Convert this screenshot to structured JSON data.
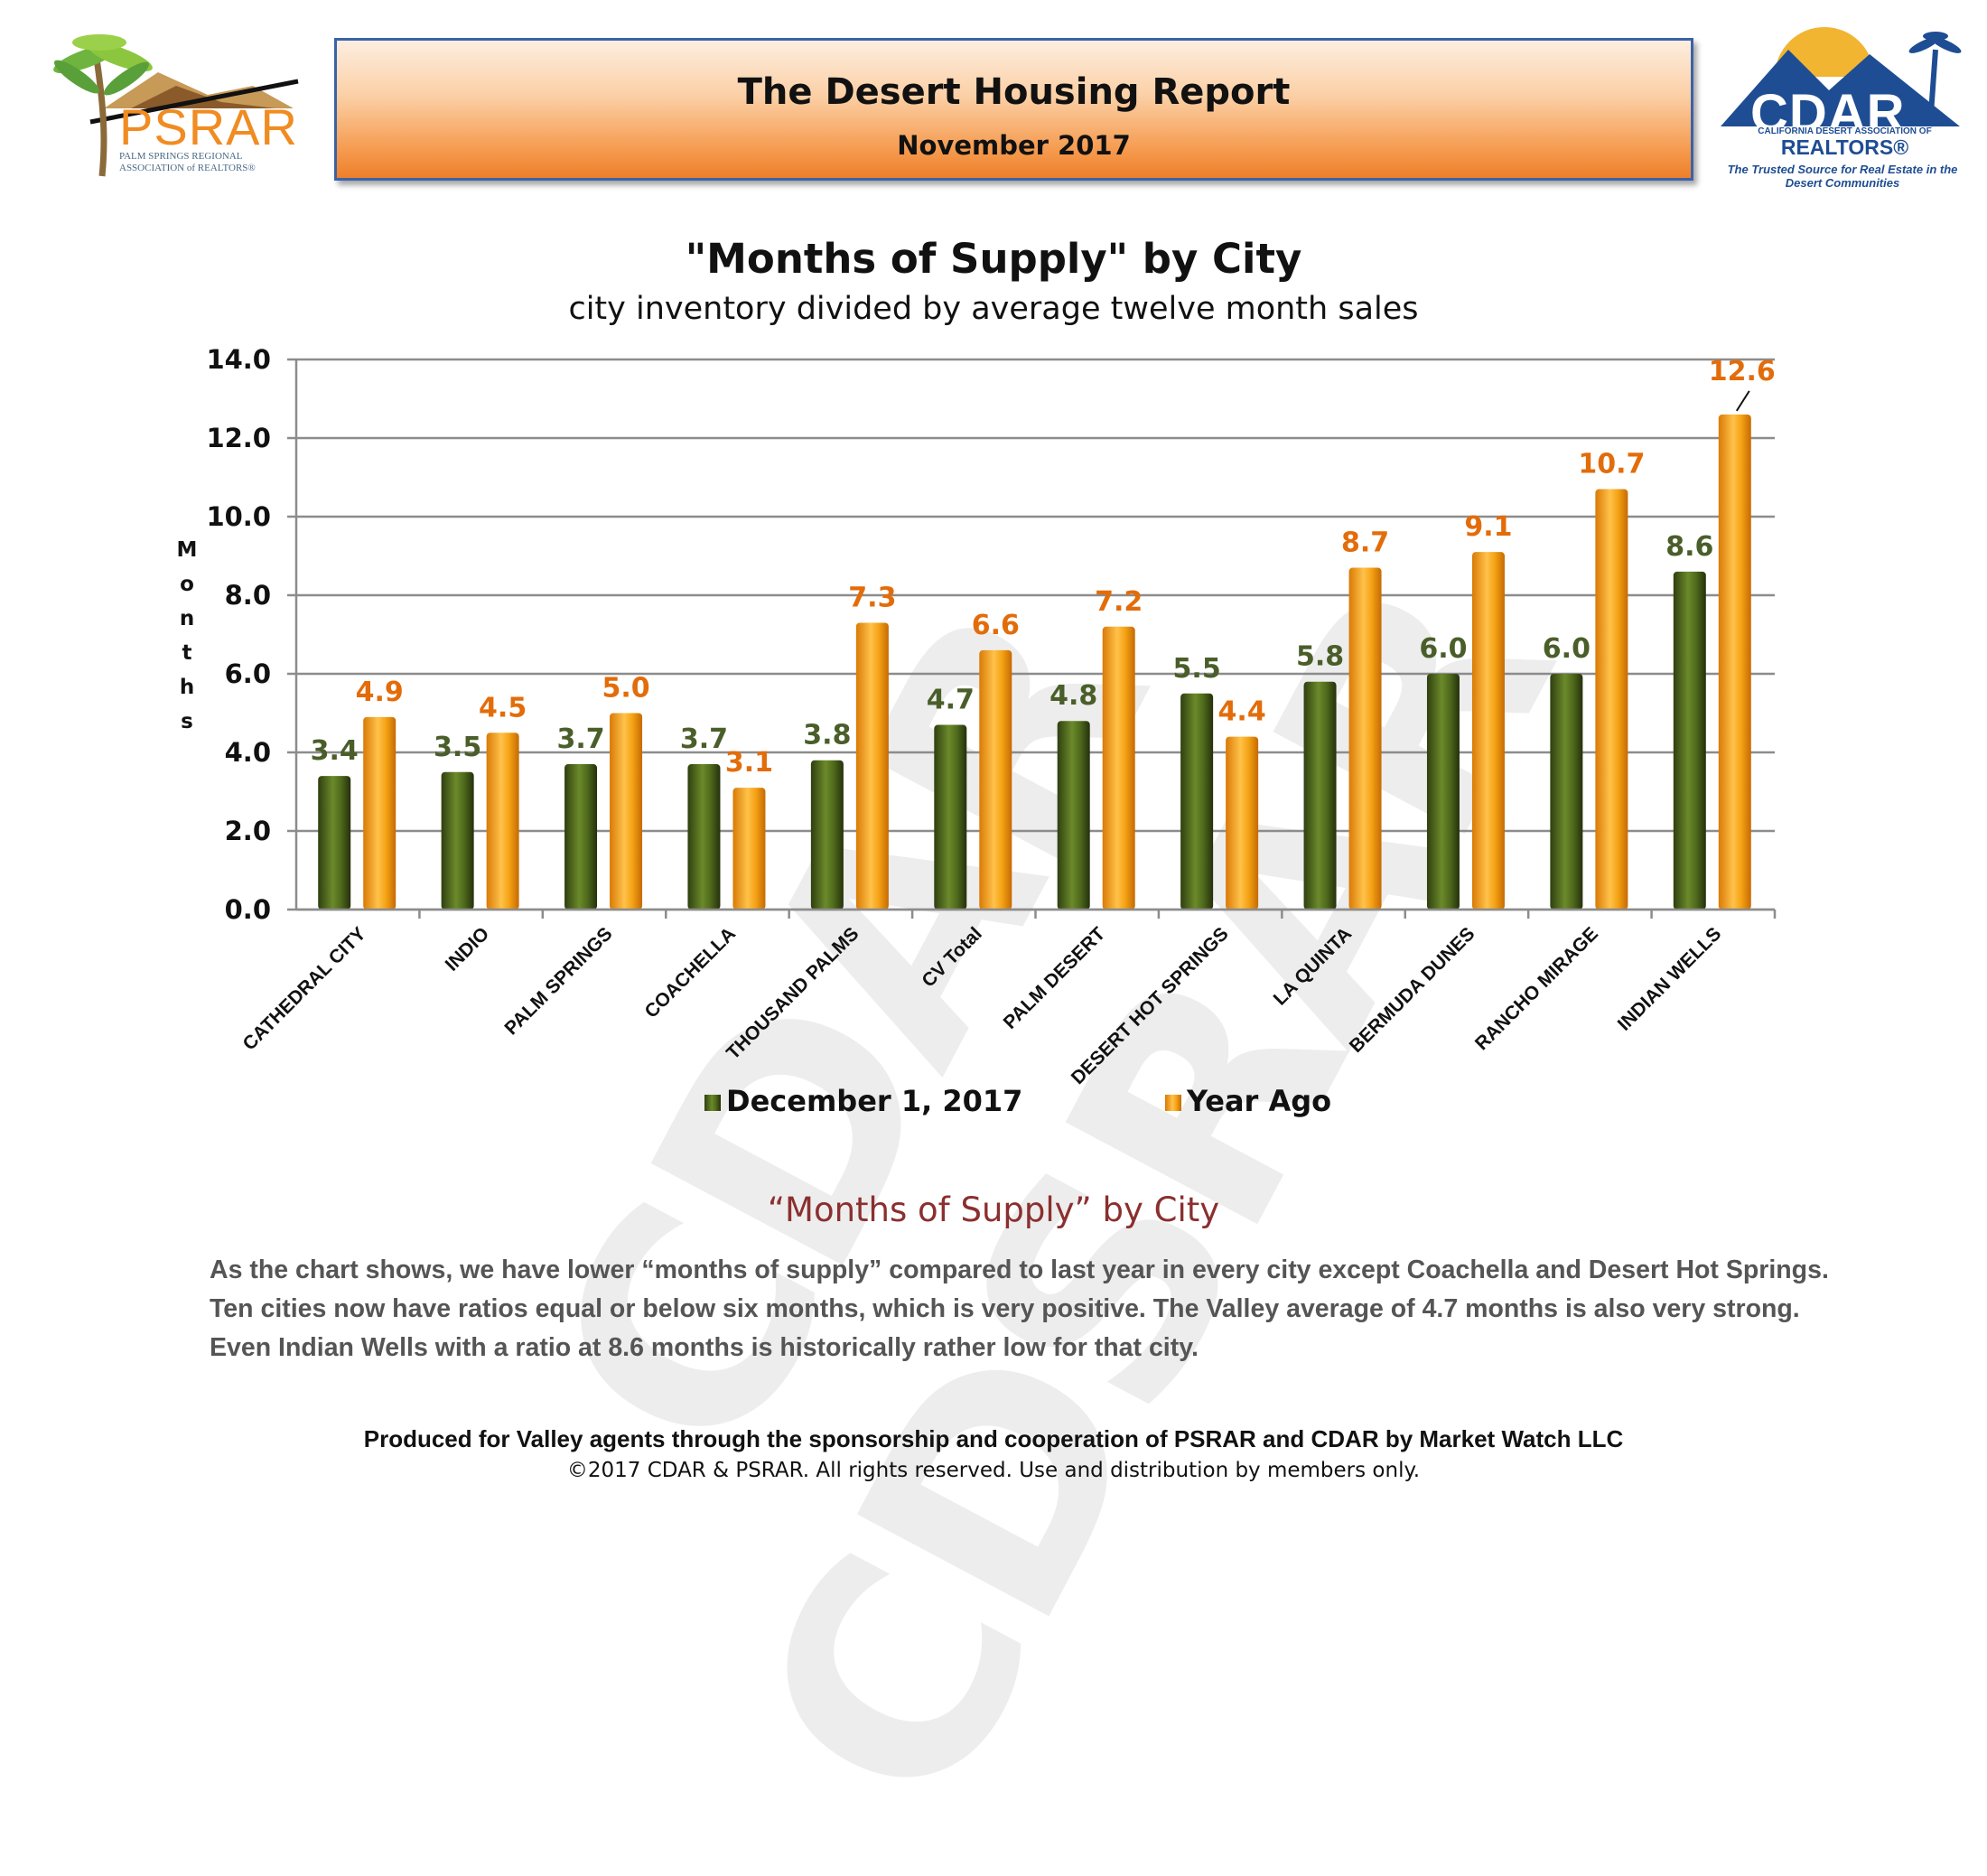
{
  "header": {
    "title": "The Desert Housing Report",
    "subtitle": "November 2017"
  },
  "logos": {
    "psrar": {
      "name": "PSRAR",
      "tagline": "PALM SPRINGS REGIONAL ASSOCIATION of REALTORS®"
    },
    "cdar": {
      "name": "CDAR",
      "assoc": "CALIFORNIA DESERT ASSOCIATION OF",
      "realtors": "REALTORS®",
      "tagline": "The Trusted Source for Real Estate in the Desert Communities"
    }
  },
  "watermark": "CDAR CDSRAR",
  "chart_data": {
    "type": "bar",
    "title": "\"Months of Supply\" by City",
    "subtitle": "city inventory divided by average twelve month sales",
    "ylabel": "Months",
    "xlabel": "",
    "ylim": [
      0,
      14
    ],
    "yticks": [
      "0.0",
      "2.0",
      "4.0",
      "6.0",
      "8.0",
      "10.0",
      "12.0",
      "14.0"
    ],
    "grid": true,
    "legend_position": "bottom",
    "categories": [
      "CATHEDRAL CITY",
      "INDIO",
      "PALM SPRINGS",
      "COACHELLA",
      "THOUSAND PALMS",
      "CV Total",
      "PALM DESERT",
      "DESERT HOT SPRINGS",
      "LA QUINTA",
      "BERMUDA DUNES",
      "RANCHO MIRAGE",
      "INDIAN WELLS"
    ],
    "series": [
      {
        "name": "December 1, 2017",
        "color": "#4f6a1c",
        "label_color": "#4a5e2a",
        "values": [
          3.4,
          3.5,
          3.7,
          3.7,
          3.8,
          4.7,
          4.8,
          5.5,
          5.8,
          6.0,
          6.0,
          8.6
        ],
        "labels": [
          "3.4",
          "3.5",
          "3.7",
          "3.7",
          "3.8",
          "4.7",
          "4.8",
          "5.5",
          "5.8",
          "6.0",
          "6.0",
          "8.6"
        ]
      },
      {
        "name": "Year Ago",
        "color": "#f4a010",
        "label_color": "#e36c0a",
        "values": [
          4.9,
          4.5,
          5.0,
          3.1,
          7.3,
          6.6,
          7.2,
          4.4,
          8.7,
          9.1,
          10.7,
          12.6
        ],
        "labels": [
          "4.9",
          "4.5",
          "5.0",
          "3.1",
          "7.3",
          "6.6",
          "7.2",
          "4.4",
          "8.7",
          "9.1",
          "10.7",
          "12.6"
        ]
      }
    ]
  },
  "commentary": {
    "heading": "“Months of Supply” by City",
    "body": "As the chart shows, we have lower “months of supply” compared to last year in every city except Coachella and Desert Hot Springs. Ten cities now have ratios equal or below six months, which is very positive. The Valley average of 4.7 months is also very strong. Even Indian Wells with a ratio at 8.6 months is historically rather low for that city."
  },
  "footer": {
    "produced_by": "Produced for Valley agents through the sponsorship and cooperation of PSRAR and CDAR by Market Watch LLC",
    "copyright": "©2017 CDAR & PSRAR.  All rights reserved.  Use and distribution by members only."
  }
}
